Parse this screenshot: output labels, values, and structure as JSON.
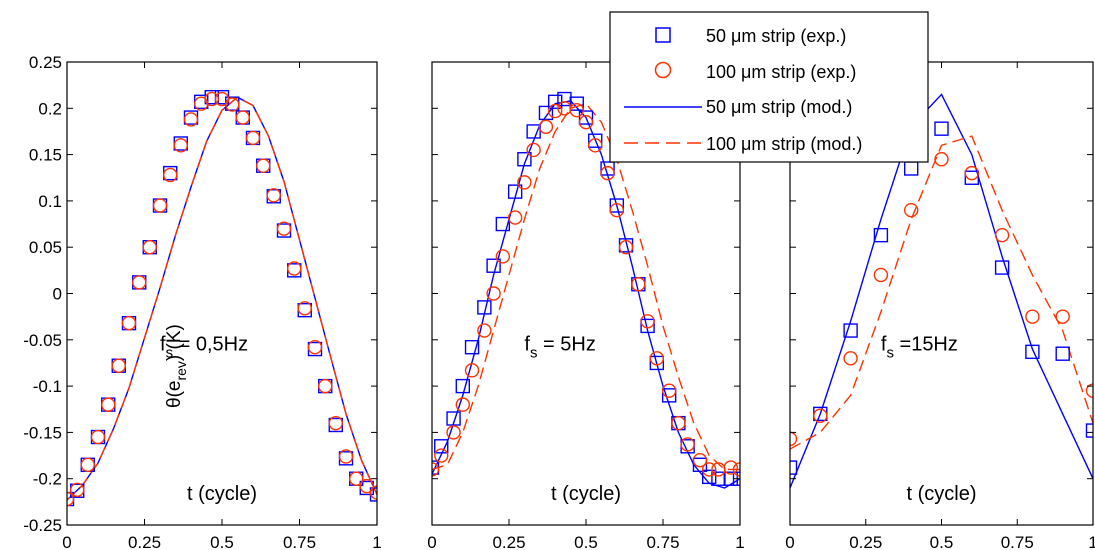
{
  "figure": {
    "ylabel_main": "θ(e",
    "ylabel_sub": "rev",
    "ylabel_tail": ") (K)",
    "xlabel": "t (cycle)",
    "legend": [
      {
        "label": "50 μm strip (exp.)",
        "kind": "square",
        "color": "#0000ff"
      },
      {
        "label": "100 μm strip (exp.)",
        "kind": "circle",
        "color": "#ff3300"
      },
      {
        "label": "50 μm strip (mod.)",
        "kind": "solid",
        "color": "#0000ff"
      },
      {
        "label": "100 μm strip (mod.)",
        "kind": "dashed",
        "color": "#ff3300"
      }
    ]
  },
  "chart_data": [
    {
      "type": "line",
      "annotation": {
        "f": "f",
        "sub": "s",
        "value": " = 0,5Hz"
      },
      "xlabel": "t (cycle)",
      "xlim": [
        0,
        1
      ],
      "ylim": [
        -0.25,
        0.25
      ],
      "xticks": [
        "0",
        "0.25",
        "0.5",
        "0.75",
        "1"
      ],
      "yticks": [
        "-0.25",
        "-0.2",
        "-0.15",
        "-0.1",
        "-0.05",
        "0",
        "0.05",
        "0.1",
        "0.15",
        "0.2",
        "0.25"
      ],
      "series": [
        {
          "name": "50 μm strip (exp.)",
          "kind": "square",
          "x": [
            0,
            0.033,
            0.067,
            0.1,
            0.133,
            0.167,
            0.2,
            0.233,
            0.267,
            0.3,
            0.333,
            0.367,
            0.4,
            0.433,
            0.467,
            0.5,
            0.533,
            0.567,
            0.6,
            0.633,
            0.667,
            0.7,
            0.733,
            0.767,
            0.8,
            0.833,
            0.867,
            0.9,
            0.933,
            0.967,
            1.0
          ],
          "y": [
            -0.222,
            -0.213,
            -0.185,
            -0.155,
            -0.12,
            -0.078,
            -0.032,
            0.012,
            0.05,
            0.095,
            0.13,
            0.162,
            0.19,
            0.207,
            0.212,
            0.212,
            0.205,
            0.19,
            0.168,
            0.138,
            0.105,
            0.068,
            0.025,
            -0.018,
            -0.06,
            -0.1,
            -0.142,
            -0.178,
            -0.2,
            -0.21,
            -0.217
          ]
        },
        {
          "name": "100 μm strip (exp.)",
          "kind": "circle",
          "x": [
            0,
            0.033,
            0.067,
            0.1,
            0.133,
            0.167,
            0.2,
            0.233,
            0.267,
            0.3,
            0.333,
            0.367,
            0.4,
            0.433,
            0.467,
            0.5,
            0.533,
            0.567,
            0.6,
            0.633,
            0.667,
            0.7,
            0.733,
            0.767,
            0.8,
            0.833,
            0.867,
            0.9,
            0.933,
            0.967,
            1.0
          ],
          "y": [
            -0.222,
            -0.212,
            -0.185,
            -0.155,
            -0.12,
            -0.078,
            -0.032,
            0.012,
            0.05,
            0.095,
            0.128,
            0.16,
            0.188,
            0.205,
            0.21,
            0.21,
            0.204,
            0.19,
            0.168,
            0.138,
            0.106,
            0.07,
            0.027,
            -0.016,
            -0.058,
            -0.1,
            -0.14,
            -0.176,
            -0.2,
            -0.208,
            -0.215
          ]
        },
        {
          "name": "50 μm strip (mod.)",
          "kind": "solid",
          "x": [
            0,
            0.05,
            0.1,
            0.15,
            0.2,
            0.25,
            0.3,
            0.35,
            0.4,
            0.45,
            0.5,
            0.55,
            0.6,
            0.65,
            0.7,
            0.75,
            0.8,
            0.85,
            0.9,
            0.95,
            1.0
          ],
          "y": [
            -0.223,
            -0.207,
            -0.183,
            -0.146,
            -0.102,
            -0.048,
            0.006,
            0.063,
            0.115,
            0.164,
            0.198,
            0.212,
            0.203,
            0.17,
            0.121,
            0.058,
            -0.005,
            -0.068,
            -0.13,
            -0.18,
            -0.217
          ]
        },
        {
          "name": "100 μm strip (mod.)",
          "kind": "dashed",
          "x": [
            0,
            0.05,
            0.1,
            0.15,
            0.2,
            0.25,
            0.3,
            0.35,
            0.4,
            0.45,
            0.5,
            0.55,
            0.6,
            0.65,
            0.7,
            0.75,
            0.8,
            0.85,
            0.9,
            0.95,
            1.0
          ],
          "y": [
            -0.223,
            -0.207,
            -0.183,
            -0.146,
            -0.102,
            -0.048,
            0.006,
            0.063,
            0.115,
            0.164,
            0.198,
            0.212,
            0.203,
            0.17,
            0.121,
            0.058,
            -0.005,
            -0.068,
            -0.13,
            -0.18,
            -0.217
          ]
        }
      ]
    },
    {
      "type": "line",
      "annotation": {
        "f": "f",
        "sub": "s",
        "value": " = 5Hz"
      },
      "xlabel": "t (cycle)",
      "xlim": [
        0,
        1
      ],
      "ylim": [
        -0.25,
        0.25
      ],
      "xticks": [
        "0",
        "0.25",
        "0.5",
        "0.75",
        "1"
      ],
      "yticks": [],
      "series": [
        {
          "name": "50 μm strip (exp.)",
          "kind": "square",
          "x": [
            0,
            0.03,
            0.07,
            0.1,
            0.13,
            0.17,
            0.2,
            0.23,
            0.27,
            0.3,
            0.33,
            0.37,
            0.4,
            0.43,
            0.47,
            0.5,
            0.53,
            0.57,
            0.6,
            0.63,
            0.67,
            0.7,
            0.73,
            0.77,
            0.8,
            0.83,
            0.87,
            0.9,
            0.93,
            0.97,
            1.0
          ],
          "y": [
            -0.188,
            -0.165,
            -0.135,
            -0.1,
            -0.058,
            -0.015,
            0.03,
            0.075,
            0.11,
            0.145,
            0.175,
            0.195,
            0.207,
            0.21,
            0.205,
            0.19,
            0.165,
            0.135,
            0.095,
            0.052,
            0.01,
            -0.035,
            -0.075,
            -0.11,
            -0.14,
            -0.165,
            -0.185,
            -0.198,
            -0.2,
            -0.2,
            -0.2
          ]
        },
        {
          "name": "100 μm strip (exp.)",
          "kind": "circle",
          "x": [
            0,
            0.03,
            0.07,
            0.1,
            0.13,
            0.17,
            0.2,
            0.23,
            0.27,
            0.3,
            0.33,
            0.37,
            0.4,
            0.43,
            0.47,
            0.5,
            0.53,
            0.57,
            0.6,
            0.63,
            0.67,
            0.7,
            0.73,
            0.77,
            0.8,
            0.83,
            0.87,
            0.9,
            0.93,
            0.97,
            1.0
          ],
          "y": [
            -0.19,
            -0.175,
            -0.15,
            -0.12,
            -0.083,
            -0.04,
            0.0,
            0.04,
            0.082,
            0.12,
            0.155,
            0.18,
            0.197,
            0.2,
            0.198,
            0.185,
            0.16,
            0.13,
            0.09,
            0.05,
            0.01,
            -0.03,
            -0.07,
            -0.105,
            -0.14,
            -0.163,
            -0.18,
            -0.19,
            -0.19,
            -0.188,
            -0.19
          ]
        },
        {
          "name": "50 μm strip (mod.)",
          "kind": "solid",
          "x": [
            0,
            0.05,
            0.1,
            0.15,
            0.2,
            0.25,
            0.3,
            0.35,
            0.4,
            0.45,
            0.5,
            0.55,
            0.6,
            0.65,
            0.7,
            0.75,
            0.8,
            0.85,
            0.9,
            0.95,
            1.0
          ],
          "y": [
            -0.195,
            -0.16,
            -0.11,
            -0.05,
            0.02,
            0.08,
            0.14,
            0.182,
            0.205,
            0.208,
            0.19,
            0.15,
            0.095,
            0.03,
            -0.04,
            -0.1,
            -0.15,
            -0.185,
            -0.205,
            -0.21,
            -0.2
          ]
        },
        {
          "name": "100 μm strip (mod.)",
          "kind": "dashed",
          "x": [
            0,
            0.05,
            0.1,
            0.15,
            0.2,
            0.25,
            0.3,
            0.35,
            0.4,
            0.45,
            0.5,
            0.55,
            0.6,
            0.65,
            0.7,
            0.75,
            0.8,
            0.85,
            0.9,
            0.95,
            1.0
          ],
          "y": [
            -0.19,
            -0.185,
            -0.15,
            -0.1,
            -0.04,
            0.02,
            0.08,
            0.135,
            0.175,
            0.2,
            0.205,
            0.185,
            0.145,
            0.09,
            0.03,
            -0.035,
            -0.09,
            -0.14,
            -0.175,
            -0.19,
            -0.19
          ]
        }
      ]
    },
    {
      "type": "line",
      "annotation": {
        "f": "f",
        "sub": "s",
        "value": " =15Hz"
      },
      "xlabel": "t (cycle)",
      "xlim": [
        0,
        1
      ],
      "ylim": [
        -0.25,
        0.25
      ],
      "xticks": [
        "0",
        "0.25",
        "0.5",
        "0.75",
        "1"
      ],
      "yticks": [],
      "series": [
        {
          "name": "50 μm strip (exp.)",
          "kind": "square",
          "x": [
            0,
            0.1,
            0.2,
            0.3,
            0.4,
            0.5,
            0.6,
            0.7,
            0.8,
            0.9,
            1.0
          ],
          "y": [
            -0.188,
            -0.13,
            -0.04,
            0.063,
            0.135,
            0.178,
            0.125,
            0.028,
            -0.063,
            -0.065,
            -0.148
          ]
        },
        {
          "name": "100 μm strip (exp.)",
          "kind": "circle",
          "x": [
            0,
            0.1,
            0.2,
            0.3,
            0.4,
            0.5,
            0.6,
            0.7,
            0.8,
            0.9,
            1.0
          ],
          "y": [
            -0.157,
            -0.132,
            -0.07,
            0.02,
            0.09,
            0.145,
            0.13,
            0.063,
            -0.025,
            -0.025,
            -0.105
          ]
        },
        {
          "name": "50 μm strip (mod.)",
          "kind": "solid",
          "x": [
            0,
            0.1,
            0.2,
            0.3,
            0.4,
            0.5,
            0.6,
            0.7,
            0.8,
            0.9,
            1.0
          ],
          "y": [
            -0.21,
            -0.13,
            -0.03,
            0.08,
            0.18,
            0.215,
            0.15,
            0.04,
            -0.06,
            -0.13,
            -0.2
          ]
        },
        {
          "name": "100 μm strip (mod.)",
          "kind": "dashed",
          "x": [
            0,
            0.1,
            0.2,
            0.3,
            0.4,
            0.5,
            0.6,
            0.7,
            0.8,
            0.9,
            1.0
          ],
          "y": [
            -0.168,
            -0.15,
            -0.11,
            -0.02,
            0.08,
            0.16,
            0.17,
            0.09,
            0.02,
            -0.04,
            -0.14
          ]
        }
      ]
    }
  ]
}
